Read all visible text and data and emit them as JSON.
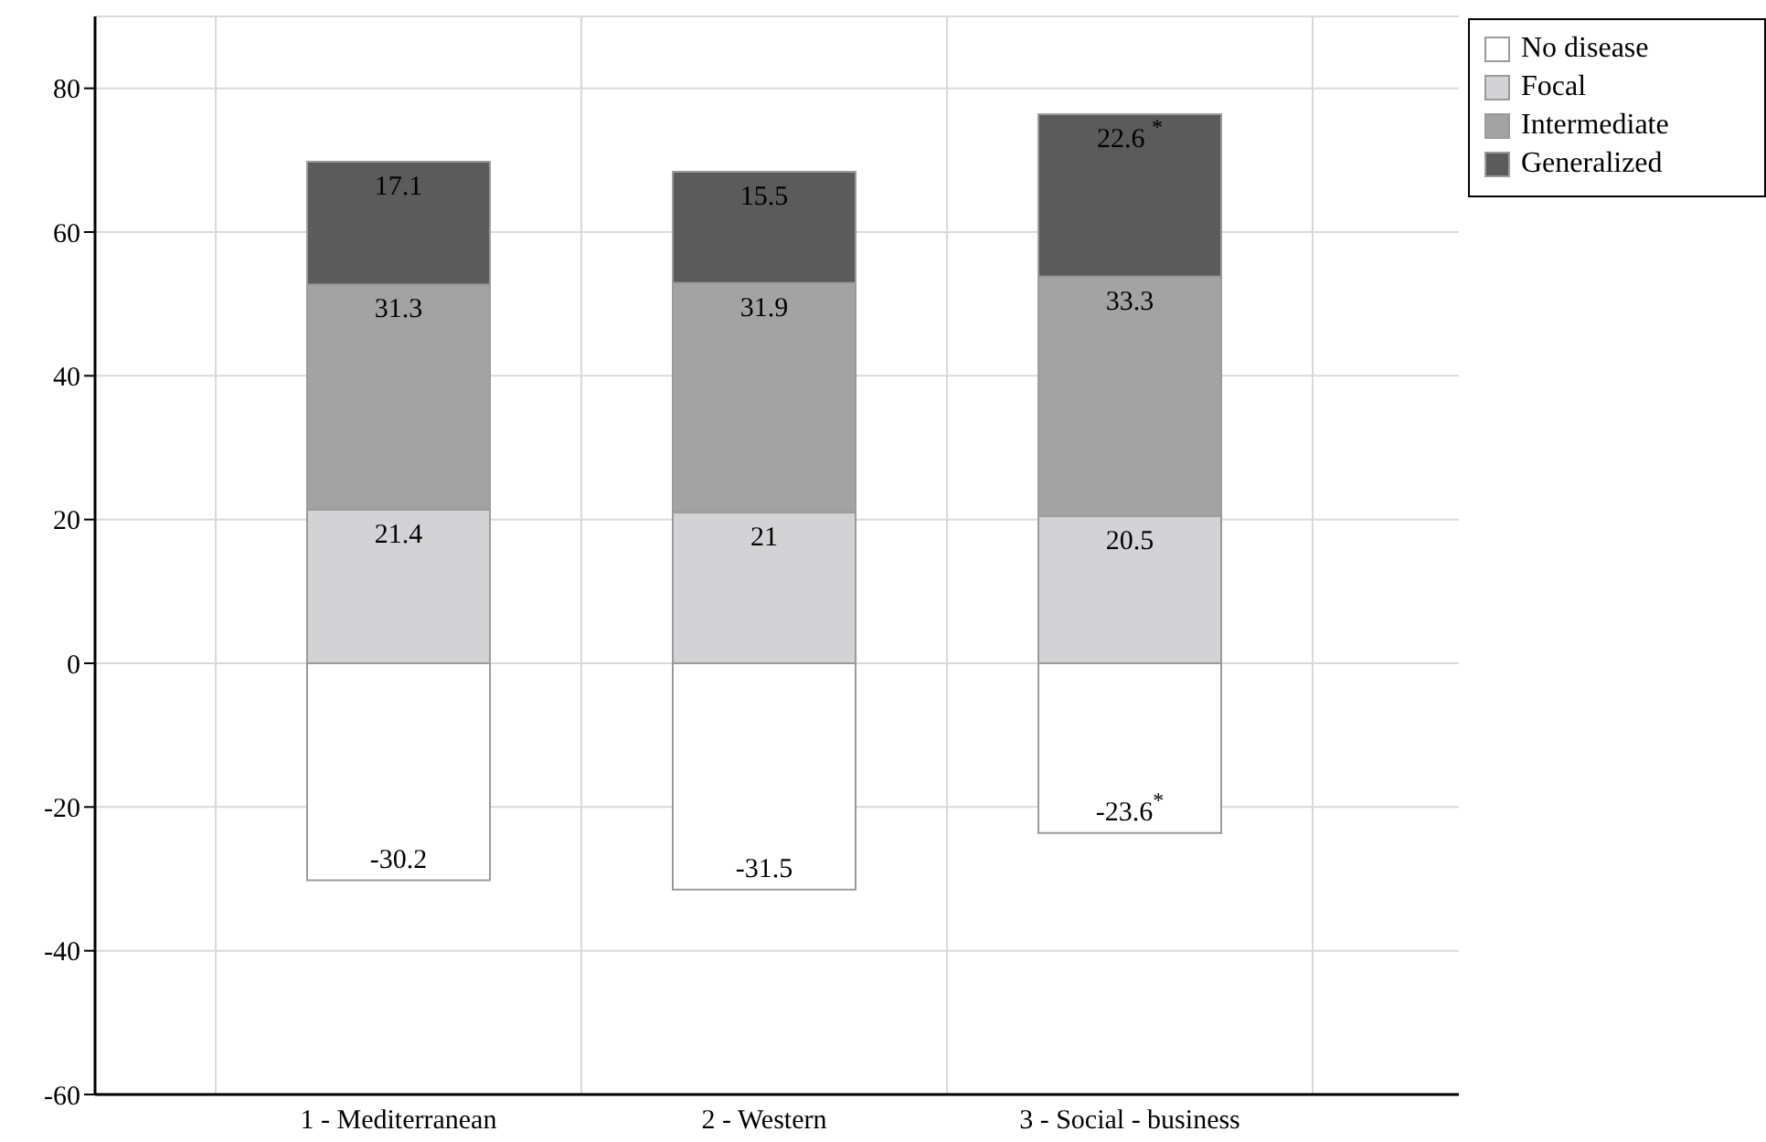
{
  "chart_data": {
    "type": "bar",
    "stacked": true,
    "categories": [
      "1 - Mediterranean",
      "2 - Western",
      "3 - Social - business"
    ],
    "series": [
      {
        "name": "No disease",
        "color": "#ffffff",
        "values": [
          -30.2,
          -31.5,
          -23.6
        ],
        "value_labels": [
          "-30.2",
          "-31.5",
          "-23.6$^{*}$"
        ]
      },
      {
        "name": "Focal",
        "color": "#d3d2d4",
        "values": [
          21.4,
          21,
          20.5
        ],
        "value_labels": [
          "21.4",
          "21",
          "20.5"
        ]
      },
      {
        "name": "Intermediate",
        "color": "#a3a3a3",
        "values": [
          31.3,
          31.9,
          33.3
        ],
        "value_labels": [
          "31.3",
          "31.9",
          "33.3"
        ]
      },
      {
        "name": "Generalized",
        "color": "#5b5b5b",
        "values": [
          17.1,
          15.5,
          22.6
        ],
        "value_labels": [
          "17.1",
          "15.5",
          "22.6 $^{*}$"
        ]
      }
    ],
    "ylim": [
      -60,
      90
    ],
    "yticks": [
      -60,
      -40,
      -20,
      0,
      20,
      40,
      60,
      80
    ],
    "grid": true,
    "legend": "top right"
  }
}
